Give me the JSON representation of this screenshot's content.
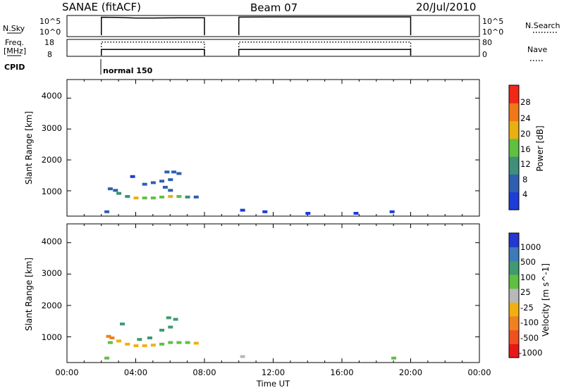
{
  "header": {
    "station": "SANAE (fitACF)",
    "beam": "Beam 07",
    "date": "20/Jul/2010"
  },
  "top_panels": {
    "nsky_label": "N.Sky",
    "nsky_ticks": [
      "10^5",
      "10^0"
    ],
    "nsearch_label": "N.Search",
    "nsearch_ticks": [
      "10^5",
      "10^0"
    ],
    "freq_label": "Freq.",
    "freq_unit": "[MHz]",
    "freq_ticks": [
      "18",
      "8"
    ],
    "nave_label": "Nave",
    "nave_ticks": [
      "80",
      "0"
    ],
    "cpid_label": "CPID",
    "cpid_value": "normal 150",
    "colors": {
      "trace": "#000000"
    }
  },
  "axes": {
    "ylabel": "Slant Range [km]",
    "yticks": [
      "4000",
      "3000",
      "2000",
      "1000"
    ],
    "xlabel": "Time UT",
    "xticks": [
      "00:00",
      "04:00",
      "08:00",
      "12:00",
      "16:00",
      "20:00",
      "00:00"
    ]
  },
  "power_colorbar": {
    "label": "Power [dB]",
    "ticks": [
      "28",
      "24",
      "20",
      "16",
      "12",
      "8",
      "4"
    ],
    "colors": [
      "#1f3bd8",
      "#2f5fb0",
      "#3f8f7a",
      "#60c040",
      "#e8b010",
      "#f07818",
      "#f02818"
    ]
  },
  "velocity_colorbar": {
    "label": "Velocity [m s^-1]",
    "ticks": [
      "1000",
      "500",
      "100",
      "25",
      "-25",
      "-100",
      "-500",
      "-1000"
    ],
    "colors": [
      "#2238d0",
      "#3f7ab8",
      "#3f9a70",
      "#5fc040",
      "#b8b8b8",
      "#f0b010",
      "#f08020",
      "#f05020",
      "#e81818"
    ]
  },
  "chart_data": [
    {
      "type": "line",
      "title": "N.Sky / N.Search",
      "x_unit": "hours UT",
      "xlim": [
        0,
        24
      ],
      "y_scale": "log",
      "gaps": [
        [
          0,
          2
        ],
        [
          8,
          10
        ],
        [
          20,
          24
        ]
      ],
      "series": [
        {
          "name": "N.Sky",
          "x": [
            2,
            3,
            4,
            5,
            6,
            7,
            8,
            10,
            12,
            14,
            16,
            18,
            20
          ],
          "y": [
            80000,
            70000,
            50000,
            50000,
            55000,
            60000,
            60000,
            90000,
            100000,
            100000,
            100000,
            100000,
            100000
          ]
        }
      ]
    },
    {
      "type": "line",
      "title": "Freq. [MHz] / Nave",
      "x_unit": "hours UT",
      "xlim": [
        0,
        24
      ],
      "ylim": [
        8,
        18
      ],
      "series": [
        {
          "name": "Freq.",
          "x": [
            2,
            8,
            10,
            20
          ],
          "y": [
            12,
            12,
            12,
            12
          ]
        },
        {
          "name": "Nave",
          "x": [
            2,
            8,
            10,
            20
          ],
          "y": [
            70,
            70,
            70,
            70
          ]
        }
      ]
    },
    {
      "type": "heatmap",
      "title": "Power [dB]",
      "x_unit": "hours UT",
      "xlim": [
        0,
        24
      ],
      "ylim": [
        180,
        4600
      ],
      "value_range": [
        0,
        30
      ],
      "cells": [
        [
          2.5,
          1050,
          8
        ],
        [
          2.8,
          1000,
          8
        ],
        [
          3.0,
          900,
          12
        ],
        [
          3.5,
          800,
          12
        ],
        [
          4.0,
          750,
          20
        ],
        [
          4.5,
          750,
          16
        ],
        [
          5.0,
          750,
          16
        ],
        [
          5.5,
          780,
          16
        ],
        [
          6.0,
          800,
          20
        ],
        [
          6.5,
          800,
          16
        ],
        [
          7.0,
          780,
          12
        ],
        [
          7.5,
          780,
          8
        ],
        [
          4.5,
          1200,
          8
        ],
        [
          5.0,
          1250,
          8
        ],
        [
          5.5,
          1300,
          8
        ],
        [
          6.0,
          1350,
          8
        ],
        [
          5.8,
          1600,
          8
        ],
        [
          6.2,
          1600,
          8
        ],
        [
          6.5,
          1550,
          8
        ],
        [
          3.8,
          1450,
          4
        ],
        [
          6.0,
          1000,
          8
        ],
        [
          5.7,
          1100,
          8
        ],
        [
          2.3,
          300,
          8
        ],
        [
          10.2,
          350,
          4
        ],
        [
          11.5,
          300,
          4
        ],
        [
          14.0,
          250,
          4
        ],
        [
          16.8,
          250,
          4
        ],
        [
          18.9,
          300,
          4
        ]
      ]
    },
    {
      "type": "heatmap",
      "title": "Velocity [m s^-1]",
      "x_unit": "hours UT",
      "xlim": [
        0,
        24
      ],
      "ylim": [
        180,
        4600
      ],
      "value_range": [
        -1000,
        1000
      ],
      "cells": [
        [
          2.4,
          1000,
          -300
        ],
        [
          2.6,
          950,
          -200
        ],
        [
          3.0,
          850,
          -100
        ],
        [
          3.5,
          750,
          -100
        ],
        [
          4.0,
          700,
          -50
        ],
        [
          4.5,
          700,
          -50
        ],
        [
          5.0,
          720,
          -50
        ],
        [
          5.5,
          750,
          50
        ],
        [
          6.0,
          800,
          80
        ],
        [
          6.5,
          800,
          80
        ],
        [
          7.0,
          800,
          50
        ],
        [
          7.5,
          780,
          -50
        ],
        [
          4.2,
          900,
          100
        ],
        [
          4.8,
          950,
          100
        ],
        [
          5.5,
          1200,
          200
        ],
        [
          6.0,
          1300,
          200
        ],
        [
          5.9,
          1600,
          200
        ],
        [
          6.3,
          1550,
          200
        ],
        [
          2.5,
          800,
          80
        ],
        [
          3.2,
          1400,
          200
        ],
        [
          2.3,
          300,
          40
        ],
        [
          10.2,
          350,
          20
        ],
        [
          19.0,
          300,
          40
        ]
      ]
    }
  ]
}
